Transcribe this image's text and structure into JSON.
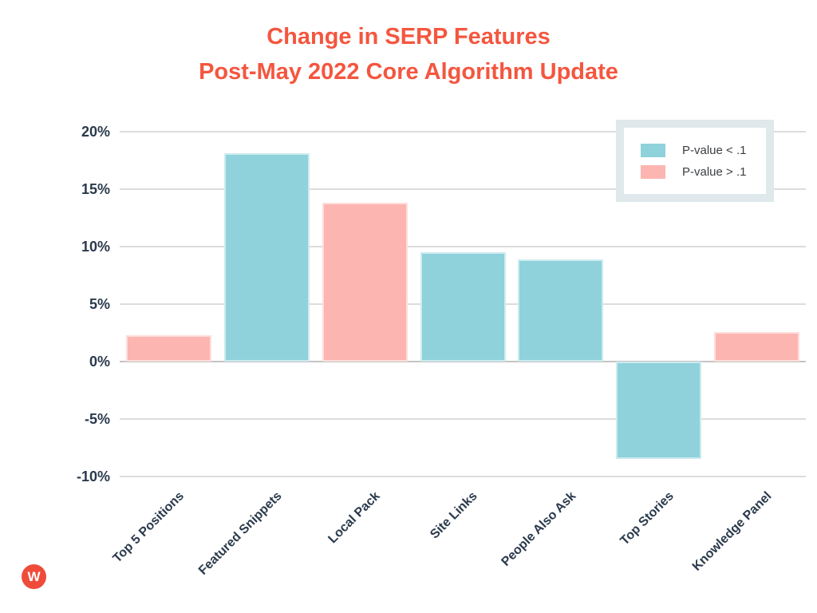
{
  "title": {
    "line1": "Change in SERP Features",
    "line2": "Post-May 2022 Core Algorithm Update",
    "color": "#f4563f"
  },
  "legend": {
    "items": [
      {
        "label": "P-value < .1",
        "color": "#8fd2db"
      },
      {
        "label": "P-value > .1",
        "color": "#fcb5b0"
      }
    ]
  },
  "logo": {
    "letter": "W",
    "color": "#ef4b3b"
  },
  "colors": {
    "axis_text": "#2b3a4c",
    "gridline": "#dcdcdc",
    "zero_line": "#c4c4c4",
    "legend_border": "#dfe8ea"
  },
  "chart_data": {
    "type": "bar",
    "title": "Change in SERP Features Post-May 2022 Core Algorithm Update",
    "categories": [
      "Top 5 Positions",
      "Featured Snippets",
      "Local Pack",
      "Site Links",
      "People Also Ask",
      "Top Stories",
      "Knowledge Panel"
    ],
    "values": [
      2.3,
      18.1,
      13.8,
      9.5,
      8.9,
      -8.5,
      2.6
    ],
    "bar_groups": [
      "P-value > .1",
      "P-value < .1",
      "P-value > .1",
      "P-value < .1",
      "P-value < .1",
      "P-value < .1",
      "P-value > .1"
    ],
    "group_colors": {
      "P-value < .1": "#8fd2db",
      "P-value > .1": "#fcb5b0"
    },
    "xlabel": "",
    "ylabel": "",
    "ylim": [
      -10,
      20
    ],
    "yticks": [
      20,
      15,
      10,
      5,
      0,
      -5,
      -10
    ],
    "ytick_labels": [
      "20%",
      "15%",
      "10%",
      "5%",
      "0%",
      "-5%",
      "-10%"
    ],
    "grid": true,
    "legend_entries": [
      "P-value < .1",
      "P-value > .1"
    ],
    "legend_position": "top-right"
  }
}
